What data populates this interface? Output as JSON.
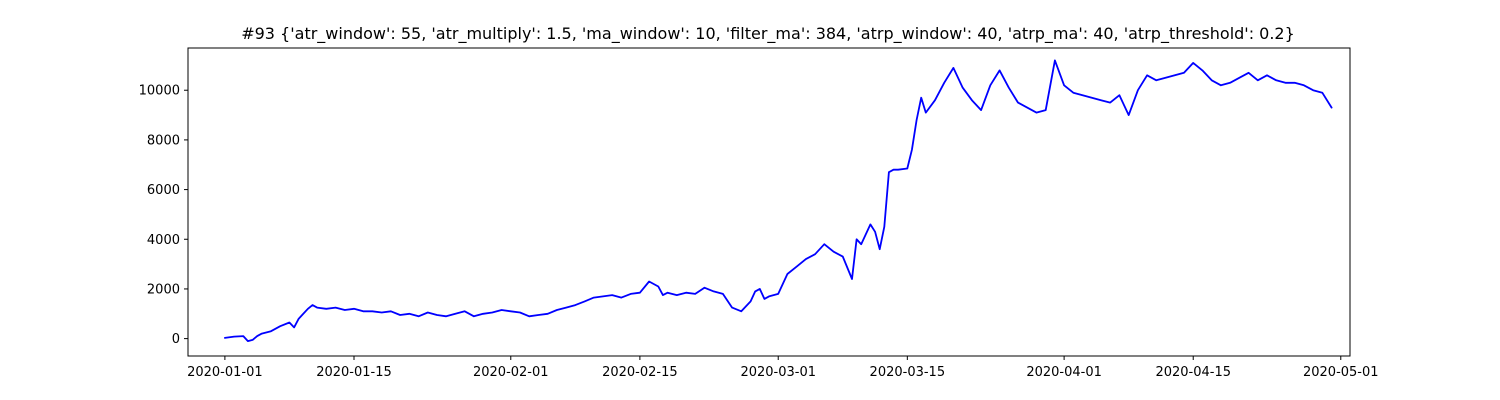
{
  "chart_data": {
    "type": "line",
    "title": "#93 {'atr_window': 55, 'atr_multiply': 1.5, 'ma_window': 10, 'filter_ma': 384, 'atrp_window': 40, 'atrp_ma': 40, 'atrp_threshold': 0.2}",
    "xlabel": "",
    "ylabel": "",
    "xlim": [
      "2019-12-28",
      "2020-05-02"
    ],
    "ylim": [
      -700,
      11700
    ],
    "x_ticks": [
      "2020-01-01",
      "2020-01-15",
      "2020-02-01",
      "2020-02-15",
      "2020-03-01",
      "2020-03-15",
      "2020-04-01",
      "2020-04-15",
      "2020-05-01"
    ],
    "y_ticks": [
      0,
      2000,
      4000,
      6000,
      8000,
      10000
    ],
    "grid": false,
    "line_color": "#0000ff",
    "series": [
      {
        "x": [
          "2020-01-01",
          "2020-01-02",
          "2020-01-03",
          "2020-01-03T12",
          "2020-01-04",
          "2020-01-04T12",
          "2020-01-05",
          "2020-01-06",
          "2020-01-07",
          "2020-01-08",
          "2020-01-08T12",
          "2020-01-09",
          "2020-01-09T12",
          "2020-01-10",
          "2020-01-10T12",
          "2020-01-11",
          "2020-01-12",
          "2020-01-13",
          "2020-01-14",
          "2020-01-15",
          "2020-01-16",
          "2020-01-17",
          "2020-01-18",
          "2020-01-19",
          "2020-01-20",
          "2020-01-21",
          "2020-01-22",
          "2020-01-23",
          "2020-01-24",
          "2020-01-25",
          "2020-01-26",
          "2020-01-27",
          "2020-01-28",
          "2020-01-29",
          "2020-01-30",
          "2020-01-31",
          "2020-02-01",
          "2020-02-02",
          "2020-02-03",
          "2020-02-04",
          "2020-02-05",
          "2020-02-06",
          "2020-02-07",
          "2020-02-08",
          "2020-02-09",
          "2020-02-10",
          "2020-02-11",
          "2020-02-12",
          "2020-02-13",
          "2020-02-14",
          "2020-02-15",
          "2020-02-16",
          "2020-02-17",
          "2020-02-17T12",
          "2020-02-18",
          "2020-02-19",
          "2020-02-20",
          "2020-02-21",
          "2020-02-22",
          "2020-02-23",
          "2020-02-24",
          "2020-02-25",
          "2020-02-26",
          "2020-02-27",
          "2020-02-27T12",
          "2020-02-28",
          "2020-02-28T12",
          "2020-02-29",
          "2020-03-01",
          "2020-03-02",
          "2020-03-03",
          "2020-03-04",
          "2020-03-05",
          "2020-03-06",
          "2020-03-07",
          "2020-03-08",
          "2020-03-09",
          "2020-03-09T12",
          "2020-03-10",
          "2020-03-11",
          "2020-03-11T12",
          "2020-03-12",
          "2020-03-12T12",
          "2020-03-13",
          "2020-03-13T12",
          "2020-03-14",
          "2020-03-15",
          "2020-03-15T12",
          "2020-03-16",
          "2020-03-16T12",
          "2020-03-17",
          "2020-03-18",
          "2020-03-19",
          "2020-03-20",
          "2020-03-21",
          "2020-03-22",
          "2020-03-23",
          "2020-03-24",
          "2020-03-25",
          "2020-03-26",
          "2020-03-27",
          "2020-03-28",
          "2020-03-29",
          "2020-03-30",
          "2020-03-31",
          "2020-04-01",
          "2020-04-02",
          "2020-04-03",
          "2020-04-04",
          "2020-04-05",
          "2020-04-06",
          "2020-04-07",
          "2020-04-08",
          "2020-04-09",
          "2020-04-10",
          "2020-04-11",
          "2020-04-12",
          "2020-04-13",
          "2020-04-14",
          "2020-04-15",
          "2020-04-16",
          "2020-04-17",
          "2020-04-18",
          "2020-04-19",
          "2020-04-20",
          "2020-04-21",
          "2020-04-22",
          "2020-04-23",
          "2020-04-24",
          "2020-04-25",
          "2020-04-26",
          "2020-04-27",
          "2020-04-28",
          "2020-04-29",
          "2020-04-30"
        ],
        "y": [
          30,
          80,
          100,
          -100,
          -50,
          100,
          200,
          300,
          500,
          650,
          450,
          800,
          1000,
          1200,
          1350,
          1250,
          1200,
          1250,
          1150,
          1200,
          1100,
          1100,
          1050,
          1100,
          950,
          1000,
          900,
          1050,
          950,
          900,
          1000,
          1100,
          900,
          1000,
          1050,
          1150,
          1100,
          1050,
          900,
          950,
          1000,
          1150,
          1250,
          1350,
          1500,
          1650,
          1700,
          1750,
          1650,
          1800,
          1850,
          2300,
          2100,
          1750,
          1850,
          1750,
          1850,
          1800,
          2050,
          1900,
          1800,
          1250,
          1100,
          1500,
          1900,
          2000,
          1600,
          1700,
          1800,
          2600,
          2900,
          3200,
          3400,
          3800,
          3500,
          3300,
          2400,
          4000,
          3800,
          4600,
          4300,
          3600,
          4500,
          6700,
          6800,
          6800,
          6850,
          7600,
          8800,
          9700,
          9100,
          9600,
          10300,
          10900,
          10100,
          9600,
          9200,
          10200,
          10800,
          10100,
          9500,
          9300,
          9100,
          9200,
          11200,
          10200,
          9900,
          9800,
          9700,
          9600,
          9500,
          9800,
          9000,
          10000,
          10600,
          10400,
          10500,
          10600,
          10700,
          11100,
          10800,
          10400,
          10200,
          10300,
          10500,
          10700,
          10400,
          10600,
          10400,
          10300,
          10300,
          10200,
          10000,
          9900,
          9300
        ]
      }
    ]
  }
}
